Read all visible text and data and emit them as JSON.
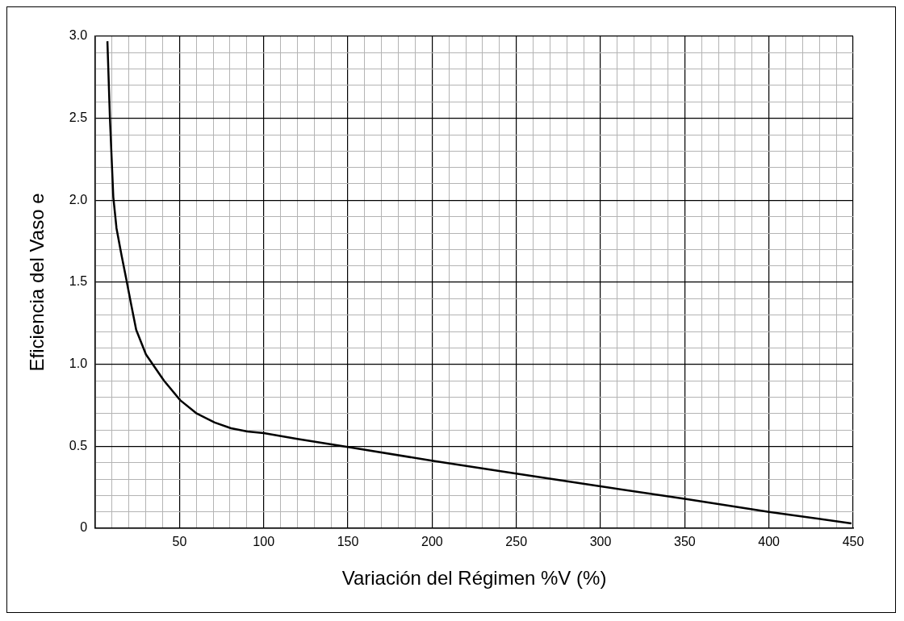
{
  "chart_data": {
    "type": "line",
    "xlabel": "Variación del Régimen %V (%)",
    "ylabel": "Eficiencia del Vaso e",
    "xlim": [
      0,
      450
    ],
    "ylim": [
      0,
      3
    ],
    "xticks": [
      {
        "value": 0,
        "label": null
      },
      {
        "value": 10,
        "label": null
      },
      {
        "value": 20,
        "label": null
      },
      {
        "value": 30,
        "label": null
      },
      {
        "value": 40,
        "label": null
      },
      50,
      {
        "value": 60,
        "label": null
      },
      {
        "value": 70,
        "label": null
      },
      {
        "value": 80,
        "label": null
      },
      {
        "value": 90,
        "label": null
      },
      100,
      {
        "value": 110,
        "label": null
      },
      {
        "value": 120,
        "label": null
      },
      {
        "value": 130,
        "label": null
      },
      {
        "value": 140,
        "label": null
      },
      150,
      {
        "value": 160,
        "label": null
      },
      {
        "value": 170,
        "label": null
      },
      {
        "value": 180,
        "label": null
      },
      {
        "value": 190,
        "label": null
      },
      200,
      {
        "value": 210,
        "label": null
      },
      {
        "value": 220,
        "label": null
      },
      {
        "value": 230,
        "label": null
      },
      {
        "value": 240,
        "label": null
      },
      250,
      {
        "value": 260,
        "label": null
      },
      {
        "value": 270,
        "label": null
      },
      {
        "value": 280,
        "label": null
      },
      {
        "value": 290,
        "label": null
      },
      300,
      {
        "value": 310,
        "label": null
      },
      {
        "value": 320,
        "label": null
      },
      {
        "value": 330,
        "label": null
      },
      {
        "value": 340,
        "label": null
      },
      350,
      {
        "value": 360,
        "label": null
      },
      {
        "value": 370,
        "label": null
      },
      {
        "value": 380,
        "label": null
      },
      {
        "value": 390,
        "label": null
      },
      400,
      {
        "value": 410,
        "label": null
      },
      {
        "value": 420,
        "label": null
      },
      {
        "value": 430,
        "label": null
      },
      {
        "value": 440,
        "label": null
      },
      450
    ],
    "yticks": [
      0,
      {
        "value": 0.1,
        "label": null
      },
      {
        "value": 0.2,
        "label": null
      },
      {
        "value": 0.3,
        "label": null
      },
      {
        "value": 0.4,
        "label": null
      },
      0.5,
      {
        "value": 0.6,
        "label": null
      },
      {
        "value": 0.7,
        "label": null
      },
      {
        "value": 0.8,
        "label": null
      },
      {
        "value": 0.9,
        "label": null
      },
      {
        "value": 1,
        "label": "1.0"
      },
      {
        "value": 1.1,
        "label": null
      },
      {
        "value": 1.2,
        "label": null
      },
      {
        "value": 1.3,
        "label": null
      },
      {
        "value": 1.4,
        "label": null
      },
      1.5,
      {
        "value": 1.6,
        "label": null
      },
      {
        "value": 1.7,
        "label": null
      },
      {
        "value": 1.8,
        "label": null
      },
      {
        "value": 1.9,
        "label": null
      },
      {
        "value": 2,
        "label": "2.0"
      },
      {
        "value": 2.1,
        "label": null
      },
      {
        "value": 2.2,
        "label": null
      },
      {
        "value": 2.3,
        "label": null
      },
      {
        "value": 2.4,
        "label": null
      },
      2.5,
      {
        "value": 2.6,
        "label": null
      },
      {
        "value": 2.7,
        "label": null
      },
      {
        "value": 2.8,
        "label": null
      },
      {
        "value": 2.9,
        "label": null
      },
      {
        "value": 3,
        "label": "3.0"
      }
    ],
    "grid": true,
    "marker": "none",
    "line_style": "solid",
    "series": [
      {
        "color": "#000000",
        "x": [
          7.2,
          8.7,
          10.7,
          12.6,
          15.5,
          18.4,
          21.4,
          24.3,
          30.1,
          40.8,
          50.5,
          60.2,
          70.9,
          80.6,
          90.3,
          100,
          120,
          150,
          200,
          250,
          300,
          350,
          400,
          449
        ],
        "values": [
          2.97,
          2.5,
          2.02,
          1.83,
          1.67,
          1.52,
          1.36,
          1.21,
          1.06,
          0.9,
          0.78,
          0.7,
          0.645,
          0.61,
          0.59,
          0.58,
          0.545,
          0.495,
          0.412,
          0.333,
          0.256,
          0.179,
          0.1,
          0.03
        ]
      }
    ]
  }
}
